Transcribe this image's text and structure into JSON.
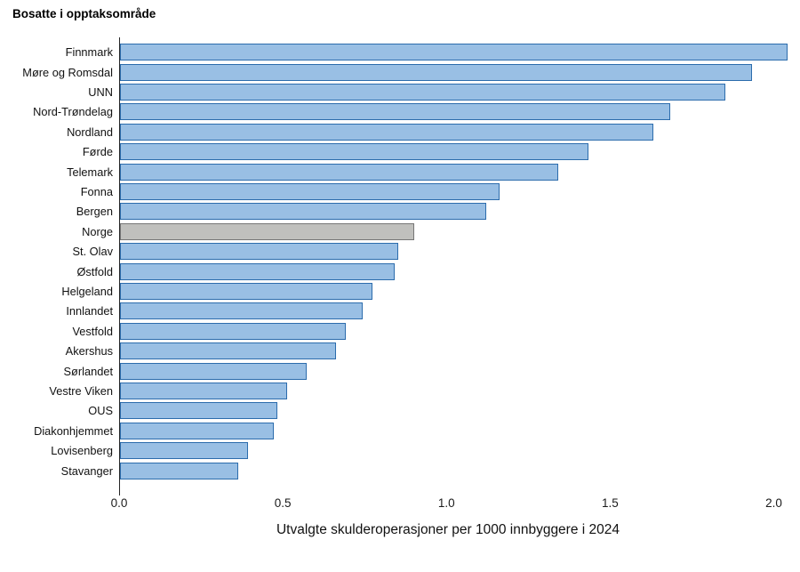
{
  "title": "Bosatte i opptaksområde",
  "xlabel": "Utvalgte skulderoperasjoner per 1000 innbyggere i 2024",
  "colors": {
    "bar_fill": "#99bfe4",
    "bar_border": "#2c6cac",
    "highlight_fill": "#c0c0bd",
    "highlight_border": "#767676",
    "axis_line": "#262626",
    "background": "#ffffff"
  },
  "chart_data": {
    "type": "bar",
    "orientation": "horizontal",
    "title": "Bosatte i opptaksområde",
    "xlabel": "Utvalgte skulderoperasjoner per 1000 innbyggere i 2024",
    "xlim": [
      0,
      2.06
    ],
    "grid": false,
    "legend": null,
    "x_ticks": [
      {
        "value": 0.0,
        "label": "0.0"
      },
      {
        "value": 0.5,
        "label": "0.5"
      },
      {
        "value": 1.0,
        "label": "1.0"
      },
      {
        "value": 1.5,
        "label": "1.5"
      },
      {
        "value": 2.0,
        "label": "2.0"
      }
    ],
    "categories": [
      "Finnmark",
      "Møre og Romsdal",
      "UNN",
      "Nord-Trøndelag",
      "Nordland",
      "Førde",
      "Telemark",
      "Fonna",
      "Bergen",
      "Norge",
      "St. Olav",
      "Østfold",
      "Helgeland",
      "Innlandet",
      "Vestfold",
      "Akershus",
      "Sørlandet",
      "Vestre Viken",
      "OUS",
      "Diakonhjemmet",
      "Lovisenberg",
      "Stavanger"
    ],
    "values": [
      2.04,
      1.93,
      1.85,
      1.68,
      1.63,
      1.43,
      1.34,
      1.16,
      1.12,
      0.9,
      0.85,
      0.84,
      0.77,
      0.74,
      0.69,
      0.66,
      0.57,
      0.51,
      0.48,
      0.47,
      0.39,
      0.36
    ],
    "highlighted_category": "Norge",
    "highlight_note": "Norge bar is gray; all other bars are blue"
  }
}
